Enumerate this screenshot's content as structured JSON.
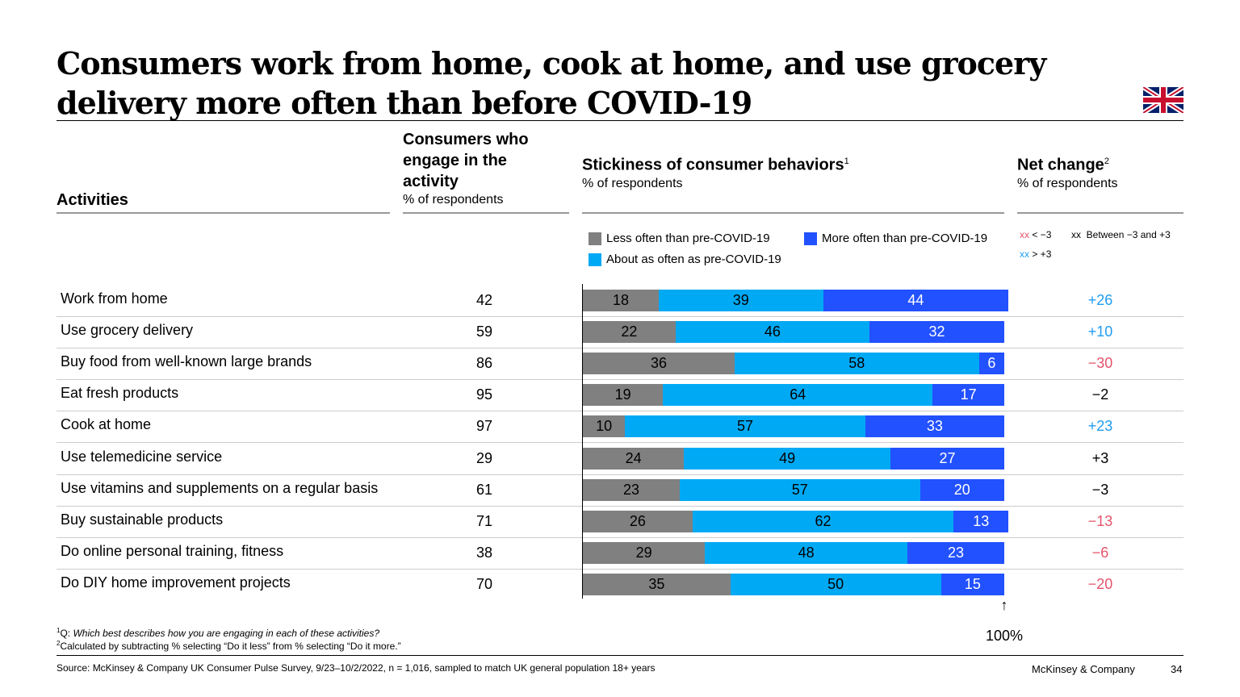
{
  "title": "Consumers work from home, cook at home, and use grocery delivery more often than before COVID-19",
  "headers": {
    "activities": "Activities",
    "engage": "Consumers who engage in the activity",
    "engage_sub": "% of respondents",
    "stickiness": "Stickiness of consumer behaviors",
    "stickiness_sup": "1",
    "stickiness_sub": "% of respondents",
    "net": "Net change",
    "net_sup": "2",
    "net_sub": "% of respondents"
  },
  "legend": {
    "less": "Less often than pre-COVID-19",
    "about": "About as often as pre-COVID-19",
    "more": "More often than pre-COVID-19",
    "neg_xx": "xx",
    "neg_text": "< −3",
    "mid_xx": "xx",
    "mid_text": "Between −3 and +3",
    "pos_xx": "xx",
    "pos_text": "> +3"
  },
  "colors": {
    "less": "#808080",
    "about": "#00a9f4",
    "more": "#2251ff",
    "negative": "#e5546c",
    "positive": "#1f9cf0",
    "neutral": "#000000"
  },
  "chart_data": {
    "type": "bar",
    "stacked": true,
    "orientation": "horizontal",
    "categories": [
      "Work from home",
      "Use grocery delivery",
      "Buy food from well-known large brands",
      "Eat fresh products",
      "Cook at home",
      "Use telemedicine service",
      "Use vitamins and supplements on a regular basis",
      "Buy sustainable products",
      "Do online personal training, fitness",
      "Do DIY home improvement projects"
    ],
    "engage": [
      "42",
      "59",
      "86",
      "95",
      "97",
      "29",
      "61",
      "71",
      "38",
      "70"
    ],
    "series": [
      {
        "name": "Less often than pre-COVID-19",
        "values": [
          18,
          22,
          36,
          19,
          10,
          24,
          23,
          26,
          29,
          35
        ]
      },
      {
        "name": "About as often as pre-COVID-19",
        "values": [
          39,
          46,
          58,
          64,
          57,
          49,
          57,
          62,
          48,
          50
        ]
      },
      {
        "name": "More often than pre-COVID-19",
        "values": [
          44,
          32,
          6,
          17,
          33,
          27,
          20,
          13,
          23,
          15
        ]
      }
    ],
    "net_change": [
      "+26",
      "+10",
      "−30",
      "−2",
      "+23",
      "+3",
      "−3",
      "−13",
      "−6",
      "−20"
    ],
    "net_class": [
      "positive",
      "positive",
      "negative",
      "neutral",
      "positive",
      "neutral",
      "neutral",
      "negative",
      "negative",
      "negative"
    ],
    "xlim": [
      0,
      100
    ],
    "marker_label": "100%"
  },
  "footnotes": {
    "f1_sup": "1",
    "f1_prefix": "Q: ",
    "f1": "Which best describes how you are engaging in each of these activities?",
    "f2_sup": "2",
    "f2": "Calculated by subtracting % selecting “Do it less” from % selecting “Do it more.”",
    "source": "Source: McKinsey & Company UK Consumer Pulse Survey, 9/23–10/2/2022, n = 1,016, sampled to match UK general population 18+ years"
  },
  "footer": {
    "brand": "McKinsey & Company",
    "page": "34"
  },
  "flag_icon": "uk-flag-icon"
}
